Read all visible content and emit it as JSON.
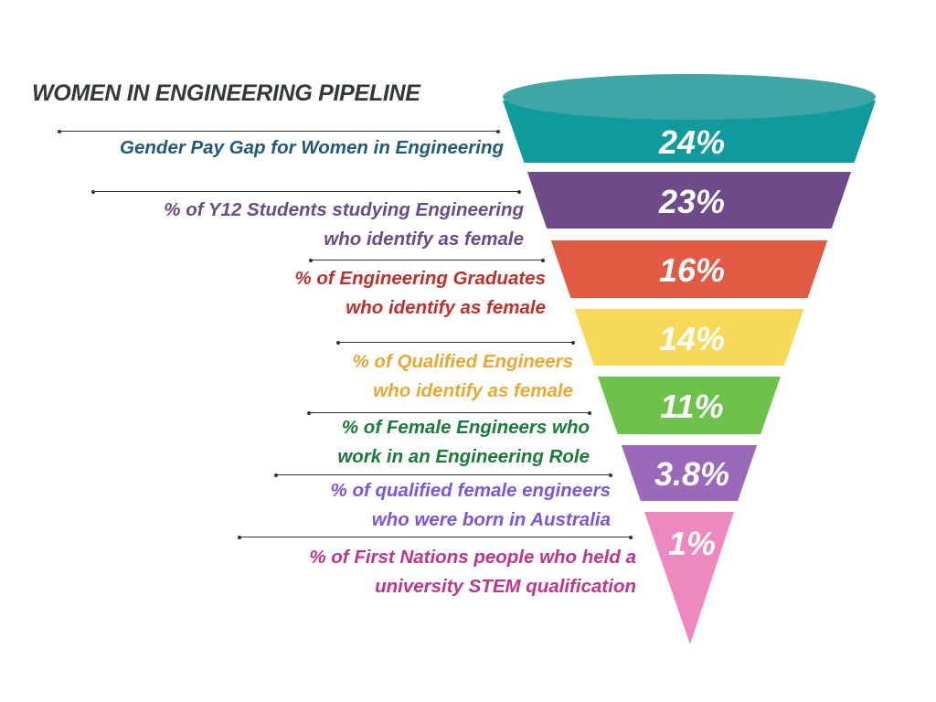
{
  "title": "WOMEN IN ENGINEERING PIPELINE",
  "stages": [
    {
      "value": "24%",
      "label_lines": [
        "Gender Pay Gap for Women in Engineering"
      ],
      "fill": "#0f9a9c",
      "text_color": "#1f5a7a"
    },
    {
      "value": "23%",
      "label_lines": [
        "% of Y12 Students studying Engineering",
        "who identify as female"
      ],
      "fill": "#6e4a8a",
      "text_color": "#6a4a8a"
    },
    {
      "value": "16%",
      "label_lines": [
        "% of Engineering Graduates",
        "who identify as female"
      ],
      "fill": "#e05a44",
      "text_color": "#c0302a"
    },
    {
      "value": "14%",
      "label_lines": [
        "% of Qualified Engineers",
        "who identify as female"
      ],
      "fill": "#f7d95a",
      "text_color": "#e8a830"
    },
    {
      "value": "11%",
      "label_lines": [
        "% of Female Engineers who",
        "work in an Engineering Role"
      ],
      "fill": "#6cc24a",
      "text_color": "#1a7a3a"
    },
    {
      "value": "3.8%",
      "label_lines": [
        "% of qualified female engineers",
        "who were born in Australia"
      ],
      "fill": "#9b69b9",
      "text_color": "#7b55e0"
    },
    {
      "value": "1%",
      "label_lines": [
        "% of First Nations people who held a",
        "university STEM qualification"
      ],
      "fill": "#ee88c0",
      "text_color": "#c0348a"
    }
  ]
}
